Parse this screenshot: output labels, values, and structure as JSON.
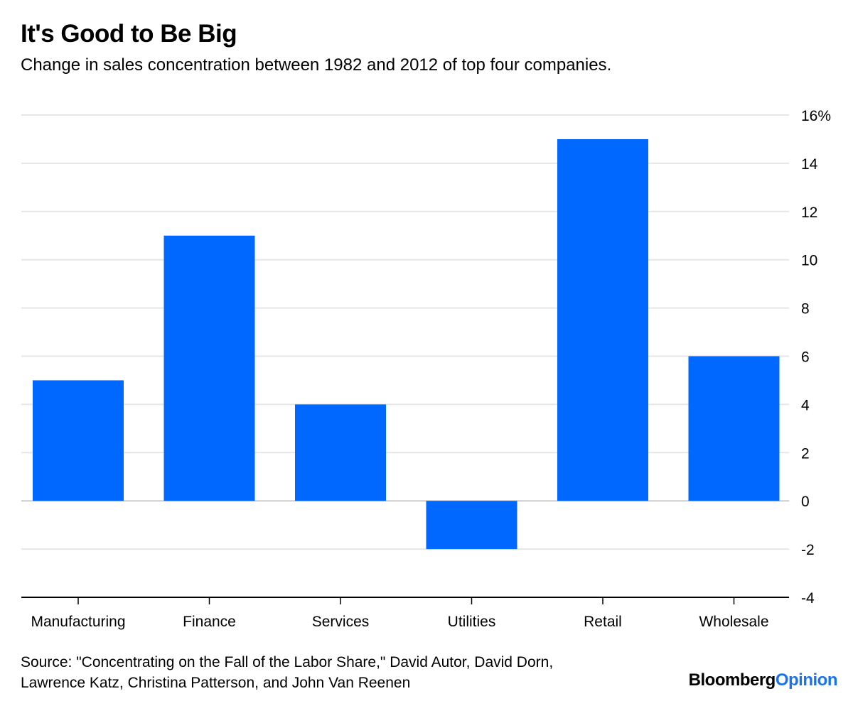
{
  "header": {
    "title": "It's Good to Be Big",
    "subtitle": "Change in sales concentration between 1982 and 2012 of top four companies."
  },
  "footer": {
    "source_line1": "Source: \"Concentrating on the Fall of the Labor Share,\" David Autor, David Dorn,",
    "source_line2": "Lawrence Katz, Christina Patterson, and John Van Reenen",
    "logo_part1": "Bloomberg",
    "logo_part2": "Opinion"
  },
  "colors": {
    "bar": "#0068ff",
    "grid": "#e6e6e6",
    "axis": "#000000",
    "logo_accent": "#1a73e8"
  },
  "chart_data": {
    "type": "bar",
    "title": "It's Good to Be Big",
    "subtitle": "Change in sales concentration between 1982 and 2012 of top four companies.",
    "xlabel": "",
    "ylabel": "",
    "categories": [
      "Manufacturing",
      "Finance",
      "Services",
      "Utilities",
      "Retail",
      "Wholesale"
    ],
    "values": [
      5,
      11,
      4,
      -2,
      15,
      6
    ],
    "ylim": [
      -4,
      16
    ],
    "yticks": [
      16,
      14,
      12,
      10,
      8,
      6,
      4,
      2,
      0,
      -2,
      -4
    ],
    "ytick_labels": [
      "16%",
      "14",
      "12",
      "10",
      "8",
      "6",
      "4",
      "2",
      "0",
      "-2",
      "-4"
    ],
    "y_axis_side": "right",
    "grid": true,
    "legend": "none"
  }
}
